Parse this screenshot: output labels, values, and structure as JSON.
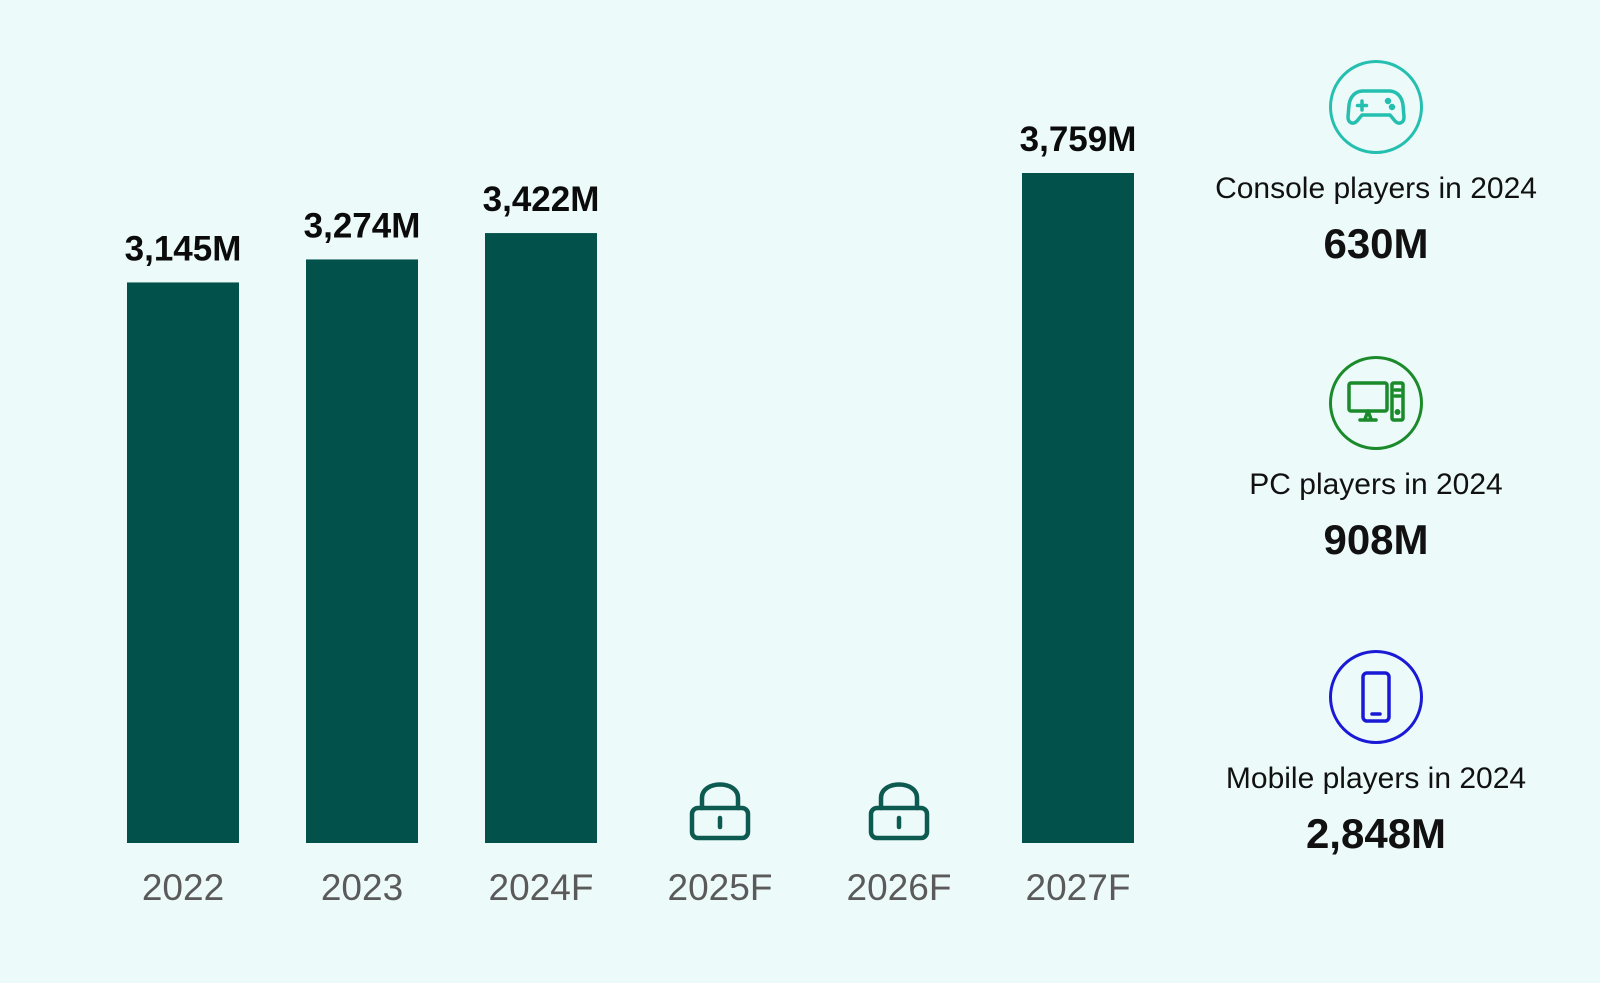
{
  "chart_data": {
    "type": "bar",
    "categories": [
      "2022",
      "2023",
      "2024F",
      "2025F",
      "2026F",
      "2027F"
    ],
    "values": [
      3145,
      3274,
      3422,
      null,
      null,
      3759
    ],
    "value_labels": [
      "3,145M",
      "3,274M",
      "3,422M",
      "",
      "",
      "3,759M"
    ],
    "locked": [
      false,
      false,
      false,
      true,
      true,
      false
    ],
    "ylim": [
      0,
      3759
    ],
    "grid": false,
    "bar_color": "#02514a",
    "lock_color": "#0d5a50"
  },
  "stats": [
    {
      "icon": "gamepad-icon",
      "label": "Console players in 2024",
      "value": "630M",
      "color": "#25bfb0"
    },
    {
      "icon": "desktop-pc-icon",
      "label": "PC players in 2024",
      "value": "908M",
      "color": "#1a8a2a"
    },
    {
      "icon": "smartphone-icon",
      "label": "Mobile players in 2024",
      "value": "2,848M",
      "color": "#1a1ad6"
    }
  ]
}
